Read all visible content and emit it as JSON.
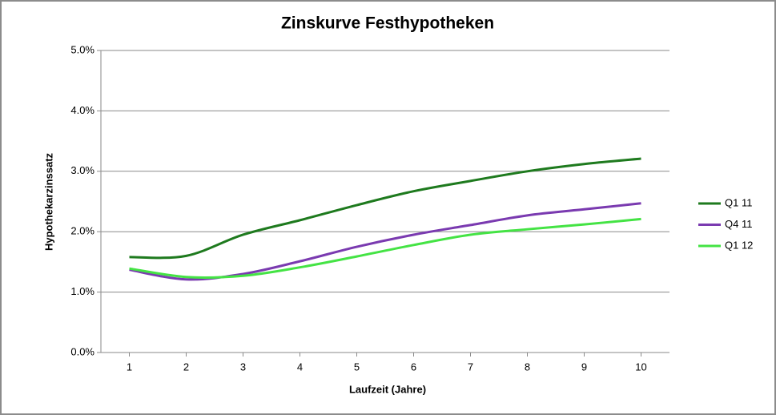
{
  "chart_data": {
    "type": "line",
    "title": "Zinskurve Festhypotheken",
    "x_label": "Laufzeit (Jahre)",
    "y_label": "Hypothekarzinssatz",
    "x": [
      1,
      2,
      3,
      4,
      5,
      6,
      7,
      8,
      9,
      10
    ],
    "xlim": [
      0.5,
      10.5
    ],
    "xticks": [
      1,
      2,
      3,
      4,
      5,
      6,
      7,
      8,
      9,
      10
    ],
    "ylim": [
      0,
      5
    ],
    "yticks": [
      {
        "value": 0,
        "label": "0.0%"
      },
      {
        "value": 1,
        "label": "1.0%"
      },
      {
        "value": 2,
        "label": "2.0%"
      },
      {
        "value": 3,
        "label": "3.0%"
      },
      {
        "value": 4,
        "label": "4.0%"
      },
      {
        "value": 5,
        "label": "5.0%"
      }
    ],
    "grid": true,
    "smooth": true,
    "legend": "right",
    "series": [
      {
        "name": "Q1 11",
        "color": "#1e7a1e",
        "values": [
          1.58,
          1.6,
          1.95,
          2.19,
          2.44,
          2.67,
          2.84,
          3.0,
          3.12,
          3.21
        ]
      },
      {
        "name": "Q4 11",
        "color": "#7a3ab0",
        "values": [
          1.37,
          1.21,
          1.3,
          1.51,
          1.75,
          1.95,
          2.11,
          2.27,
          2.37,
          2.47
        ]
      },
      {
        "name": "Q1 12",
        "color": "#44e344",
        "values": [
          1.39,
          1.25,
          1.27,
          1.41,
          1.59,
          1.78,
          1.95,
          2.04,
          2.12,
          2.21
        ]
      }
    ]
  }
}
